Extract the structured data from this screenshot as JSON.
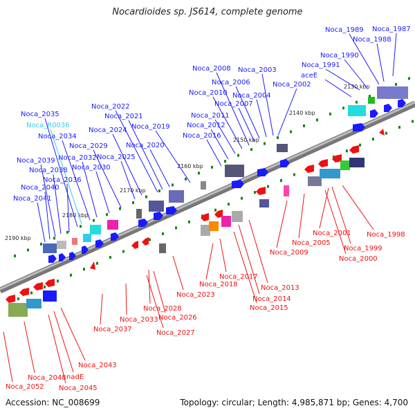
{
  "title": "Nocardioides sp. JS614, complete genome",
  "accession": "Accession: NC_008699",
  "topology": "Topology: circular; Length: 4,985,871 bp; Genes: 4,700",
  "scale_labels": [
    "2130 kbp",
    "2140 kbp",
    "2150 kbp",
    "2160 kbp",
    "2170 kbp",
    "2180 kbp",
    "2190 kbp"
  ],
  "upper_labels": [
    {
      "text": "Noca_1987",
      "color": "#1a1aff"
    },
    {
      "text": "Noca_1988",
      "color": "#1a1aff"
    },
    {
      "text": "Noca_1989",
      "color": "#1a1aff"
    },
    {
      "text": "Noca_1990",
      "color": "#1a1aff"
    },
    {
      "text": "Noca_1991",
      "color": "#1a1aff"
    },
    {
      "text": "aceE",
      "color": "#1a1aff"
    },
    {
      "text": "Noca_2002",
      "color": "#1a1aff"
    },
    {
      "text": "Noca_2003",
      "color": "#1a1aff"
    },
    {
      "text": "Noca_2004",
      "color": "#1a1aff"
    },
    {
      "text": "Noca_2006",
      "color": "#1a1aff"
    },
    {
      "text": "Noca_2007",
      "color": "#1a1aff"
    },
    {
      "text": "Noca_2008",
      "color": "#1a1aff"
    },
    {
      "text": "Noca_2010",
      "color": "#1a1aff"
    },
    {
      "text": "Noca_2011",
      "color": "#1a1aff"
    },
    {
      "text": "Noca_2012",
      "color": "#1a1aff"
    },
    {
      "text": "Noca_2016",
      "color": "#1a1aff"
    },
    {
      "text": "Noca_2019",
      "color": "#1a1aff"
    },
    {
      "text": "Noca_2020",
      "color": "#1a1aff"
    },
    {
      "text": "Noca_2021",
      "color": "#1a1aff"
    },
    {
      "text": "Noca_2022",
      "color": "#1a1aff"
    },
    {
      "text": "Noca_2024",
      "color": "#1a1aff"
    },
    {
      "text": "Noca_2025",
      "color": "#1a1aff"
    },
    {
      "text": "Noca_2029",
      "color": "#1a1aff"
    },
    {
      "text": "Noca_2030",
      "color": "#1a1aff"
    },
    {
      "text": "Noca_2032",
      "color": "#1a1aff"
    },
    {
      "text": "Noca_2034",
      "color": "#1a1aff"
    },
    {
      "text": "Noca_R0036",
      "color": "#33ccee"
    },
    {
      "text": "Noca_2035",
      "color": "#1a1aff"
    },
    {
      "text": "Noca_2036",
      "color": "#1a1aff"
    },
    {
      "text": "Noca_2038",
      "color": "#1a1aff"
    },
    {
      "text": "Noca_2039",
      "color": "#1a1aff"
    },
    {
      "text": "Noca_2040",
      "color": "#1a1aff"
    },
    {
      "text": "Noca_2041",
      "color": "#1a1aff"
    }
  ],
  "lower_labels": [
    {
      "text": "Noca_1998"
    },
    {
      "text": "Noca_2001"
    },
    {
      "text": "Noca_1999"
    },
    {
      "text": "Noca_2000"
    },
    {
      "text": "Noca_2005"
    },
    {
      "text": "Noca_2009"
    },
    {
      "text": "Noca_2013"
    },
    {
      "text": "Noca_2014"
    },
    {
      "text": "Noca_2015"
    },
    {
      "text": "Noca_2017"
    },
    {
      "text": "Noca_2018"
    },
    {
      "text": "Noca_2023"
    },
    {
      "text": "Noca_2028"
    },
    {
      "text": "Noca_2026"
    },
    {
      "text": "Noca_2033"
    },
    {
      "text": "Noca_2027"
    },
    {
      "text": "Noca_2037"
    },
    {
      "text": "Noca_2043"
    },
    {
      "text": "nadE"
    },
    {
      "text": "Noca_2045"
    },
    {
      "text": "Noca_2048"
    },
    {
      "text": "Noca_2052"
    }
  ],
  "colors": {
    "forward": "#1a1aff",
    "reverse": "#ee1111",
    "backbone": "#888888",
    "ticks": "#118811",
    "rna": "#33ccee"
  }
}
